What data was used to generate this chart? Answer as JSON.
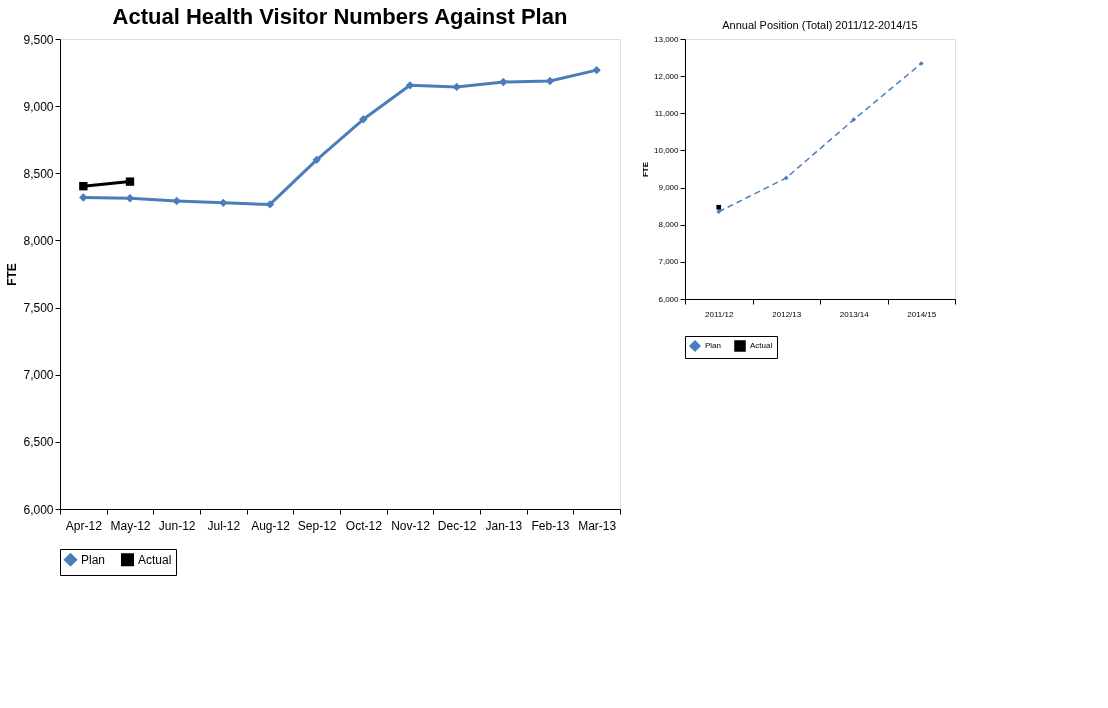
{
  "chart_data": [
    {
      "type": "line",
      "title": "Actual Health Visitor Numbers Against Plan",
      "ylabel": "FTE",
      "categories": [
        "Apr-12",
        "May-12",
        "Jun-12",
        "Jul-12",
        "Aug-12",
        "Sep-12",
        "Oct-12",
        "Nov-12",
        "Dec-12",
        "Jan-13",
        "Feb-13",
        "Mar-13"
      ],
      "ylim": [
        6000,
        9500
      ],
      "yticks": [
        {
          "value": 6000,
          "label": "6,000"
        },
        {
          "value": 6500,
          "label": "6,500"
        },
        {
          "value": 7000,
          "label": "7,000"
        },
        {
          "value": 7500,
          "label": "7,500"
        },
        {
          "value": 8000,
          "label": "8,000"
        },
        {
          "value": 8500,
          "label": "8,500"
        },
        {
          "value": 9000,
          "label": "9,000"
        },
        {
          "value": 9500,
          "label": "9,500"
        }
      ],
      "grid": false,
      "legend": "bottom",
      "series": [
        {
          "name": "Plan",
          "color": "#4a7ebb",
          "marker": "diamond",
          "line_style": "solid",
          "values": [
            8320,
            8314,
            8294,
            8280,
            8268,
            8600,
            8902,
            9155,
            9143,
            9180,
            9187,
            9268
          ]
        },
        {
          "name": "Actual",
          "color": "#000000",
          "marker": "square",
          "line_style": "solid",
          "values": [
            8404,
            8438,
            null,
            null,
            null,
            null,
            null,
            null,
            null,
            null,
            null,
            null
          ]
        }
      ]
    },
    {
      "type": "line",
      "title": "Annual Position (Total) 2011/12-2014/15",
      "ylabel": "FTE",
      "categories": [
        "2011/12",
        "2012/13",
        "2013/14",
        "2014/15"
      ],
      "ylim": [
        6000,
        13000
      ],
      "yticks": [
        {
          "value": 6000,
          "label": "6,000"
        },
        {
          "value": 7000,
          "label": "7,000"
        },
        {
          "value": 8000,
          "label": "8,000"
        },
        {
          "value": 9000,
          "label": "9,000"
        },
        {
          "value": 10000,
          "label": "10,000"
        },
        {
          "value": 11000,
          "label": "11,000"
        },
        {
          "value": 12000,
          "label": "12,000"
        },
        {
          "value": 13000,
          "label": "13,000"
        }
      ],
      "grid": false,
      "legend": "bottom",
      "series": [
        {
          "name": "Plan",
          "color": "#4a7ebb",
          "marker": "diamond",
          "line_style": "dashed",
          "values": [
            8350,
            9260,
            10830,
            12340
          ]
        },
        {
          "name": "Actual",
          "color": "#000000",
          "marker": "square",
          "line_style": "solid",
          "values": [
            8470,
            null,
            null,
            null
          ]
        }
      ]
    }
  ]
}
